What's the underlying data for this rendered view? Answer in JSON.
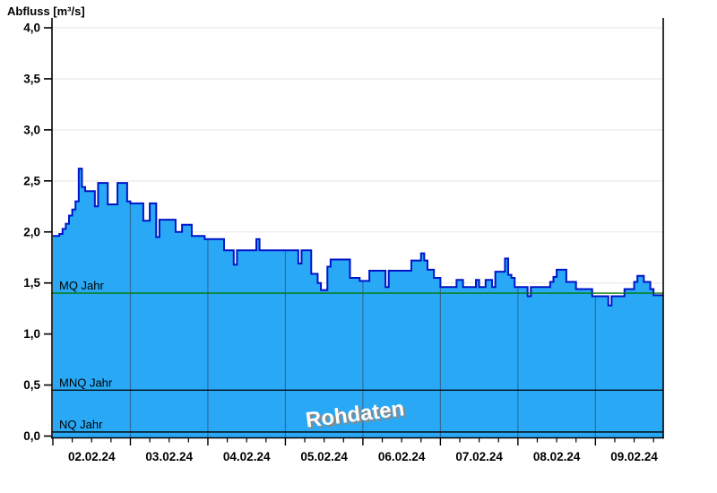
{
  "window": {
    "title": "Abfluss [m³/s]"
  },
  "chart_data": {
    "type": "area",
    "title": "Abfluss [m³/s]",
    "ylabel": "Abfluss [m³/s]",
    "xlabel": "",
    "ylim": [
      0,
      4
    ],
    "y_tick_step": 0.5,
    "y_tick_labels": [
      "0,0",
      "0,5",
      "1,0",
      "1,5",
      "2,0",
      "2,5",
      "3,0",
      "3,5",
      "4,0"
    ],
    "x_tick_labels": [
      "02.02.24",
      "03.02.24",
      "04.02.24",
      "05.02.24",
      "06.02.24",
      "07.02.24",
      "08.02.24",
      "09.02.24"
    ],
    "grid": true,
    "legend_position": "none",
    "interval_hours": 1,
    "hours_per_day": 24,
    "total_hours": 189,
    "values": [
      1.96,
      1.96,
      1.98,
      2.03,
      2.08,
      2.16,
      2.22,
      2.3,
      2.62,
      2.44,
      2.4,
      2.4,
      2.4,
      2.25,
      2.48,
      2.48,
      2.48,
      2.27,
      2.27,
      2.27,
      2.48,
      2.48,
      2.48,
      2.3,
      2.28,
      2.28,
      2.28,
      2.28,
      2.11,
      2.11,
      2.28,
      2.28,
      1.95,
      2.12,
      2.12,
      2.12,
      2.12,
      2.12,
      2.0,
      2.0,
      2.07,
      2.07,
      2.07,
      1.96,
      1.96,
      1.96,
      1.96,
      1.93,
      1.93,
      1.93,
      1.93,
      1.93,
      1.93,
      1.82,
      1.82,
      1.82,
      1.68,
      1.82,
      1.82,
      1.82,
      1.82,
      1.82,
      1.82,
      1.93,
      1.82,
      1.82,
      1.82,
      1.82,
      1.82,
      1.82,
      1.82,
      1.82,
      1.82,
      1.82,
      1.82,
      1.82,
      1.69,
      1.82,
      1.82,
      1.82,
      1.59,
      1.59,
      1.5,
      1.43,
      1.43,
      1.66,
      1.73,
      1.73,
      1.73,
      1.73,
      1.73,
      1.73,
      1.55,
      1.55,
      1.55,
      1.52,
      1.52,
      1.52,
      1.62,
      1.62,
      1.62,
      1.62,
      1.62,
      1.46,
      1.62,
      1.62,
      1.62,
      1.62,
      1.62,
      1.62,
      1.62,
      1.72,
      1.72,
      1.72,
      1.79,
      1.72,
      1.63,
      1.63,
      1.55,
      1.55,
      1.46,
      1.46,
      1.46,
      1.46,
      1.46,
      1.53,
      1.53,
      1.46,
      1.46,
      1.46,
      1.46,
      1.53,
      1.46,
      1.46,
      1.53,
      1.53,
      1.46,
      1.61,
      1.61,
      1.61,
      1.74,
      1.58,
      1.55,
      1.46,
      1.46,
      1.46,
      1.46,
      1.37,
      1.46,
      1.46,
      1.46,
      1.46,
      1.46,
      1.46,
      1.51,
      1.56,
      1.63,
      1.63,
      1.63,
      1.51,
      1.51,
      1.51,
      1.44,
      1.44,
      1.44,
      1.44,
      1.44,
      1.37,
      1.37,
      1.37,
      1.37,
      1.37,
      1.28,
      1.37,
      1.37,
      1.37,
      1.37,
      1.44,
      1.44,
      1.44,
      1.51,
      1.57,
      1.57,
      1.51,
      1.51,
      1.44,
      1.38,
      1.38,
      1.38,
      1.38
    ],
    "reference_lines": [
      {
        "label": "MQ Jahr",
        "value": 1.4,
        "color": "#007a00"
      },
      {
        "label": "MNQ Jahr",
        "value": 0.45,
        "color": "#000000"
      },
      {
        "label": "NQ Jahr",
        "value": 0.04,
        "color": "#000000"
      }
    ],
    "watermark": "Rohdaten",
    "colors": {
      "fill": "#29A9F5",
      "line": "#0014C8",
      "grid": "#EBEBEB",
      "day_line_over_fill": "#2F6D9E",
      "axis": "#000000",
      "watermark_fill": "#FFFFFF",
      "watermark_shadow": "#8A8A8A"
    }
  }
}
